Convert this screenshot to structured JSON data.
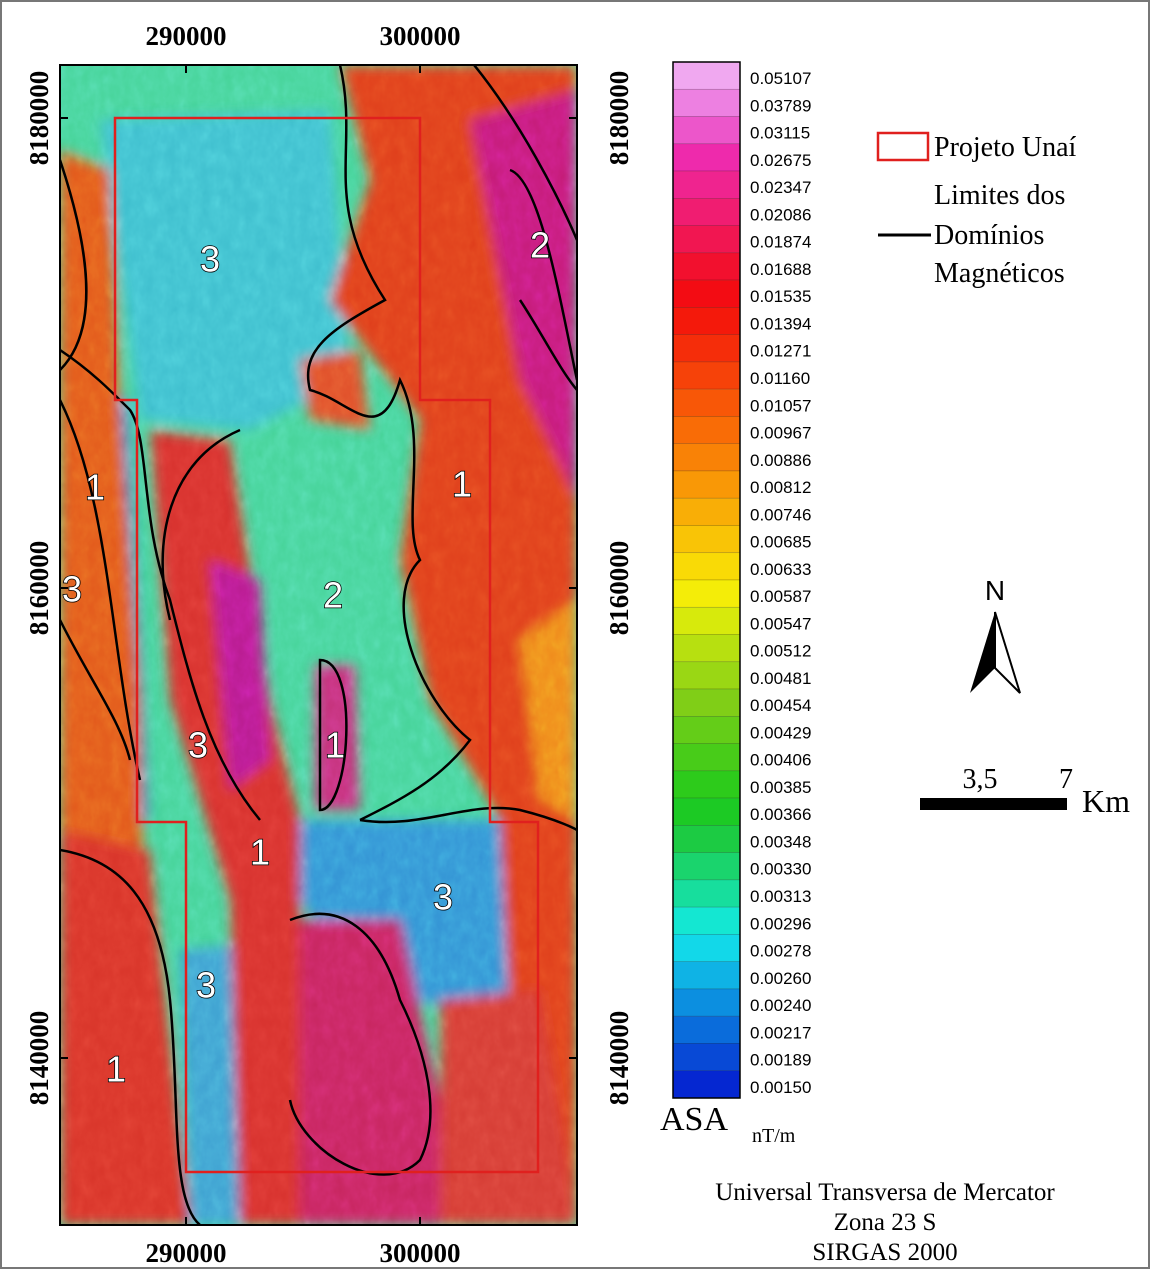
{
  "map": {
    "top_labels": [
      "290000",
      "300000"
    ],
    "bottom_labels": [
      "290000",
      "300000"
    ],
    "left_labels": [
      "8180000",
      "8160000",
      "8140000"
    ],
    "right_labels": [
      "8180000",
      "8160000",
      "8140000"
    ],
    "domain_labels": [
      "3",
      "2",
      "1",
      "1",
      "3",
      "2",
      "3",
      "1",
      "1",
      "3",
      "3",
      "1"
    ],
    "color_scale": {
      "labels": [
        "0.05107",
        "0.03789",
        "0.03115",
        "0.02675",
        "0.02347",
        "0.02086",
        "0.01874",
        "0.01688",
        "0.01535",
        "0.01394",
        "0.01271",
        "0.01160",
        "0.01057",
        "0.00967",
        "0.00886",
        "0.00812",
        "0.00746",
        "0.00685",
        "0.00633",
        "0.00587",
        "0.00547",
        "0.00512",
        "0.00481",
        "0.00454",
        "0.00429",
        "0.00406",
        "0.00385",
        "0.00366",
        "0.00348",
        "0.00330",
        "0.00313",
        "0.00296",
        "0.00278",
        "0.00260",
        "0.00240",
        "0.00217",
        "0.00189",
        "0.00150"
      ],
      "title": "ASA",
      "unit": "nT/m"
    },
    "legend": {
      "project": "Projeto Unaí",
      "boundaries": [
        "Limites dos",
        "Domínios",
        "Magnéticos"
      ]
    },
    "north": "N",
    "scale_bar": {
      "labels": [
        "3,5",
        "7"
      ],
      "unit": "Km"
    },
    "projection": [
      "Universal Transversa de Mercator",
      "Zona 23 S",
      "SIRGAS 2000"
    ]
  }
}
